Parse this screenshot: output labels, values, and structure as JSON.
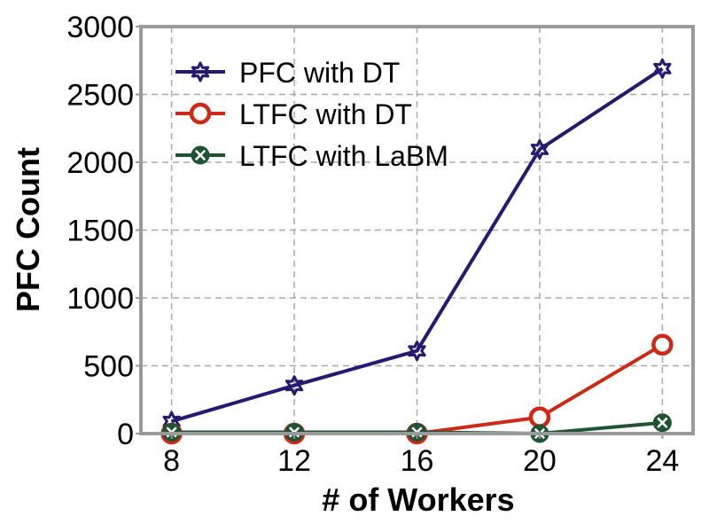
{
  "chart_data": {
    "type": "line",
    "x": [
      8,
      12,
      16,
      20,
      24
    ],
    "xticks": [
      "8",
      "12",
      "16",
      "20",
      "24"
    ],
    "xlim": [
      7,
      25
    ],
    "ylim": [
      0,
      3000
    ],
    "yticks": [
      "0",
      "500",
      "1000",
      "1500",
      "2000",
      "2500",
      "3000"
    ],
    "xlabel": "# of Workers",
    "ylabel": "PFC Count",
    "grid": true,
    "legend_position": "upper-left",
    "series": [
      {
        "name": "PFC with DT",
        "values": [
          90,
          355,
          610,
          2095,
          2690
        ],
        "color": "#241a6f",
        "marker": "star"
      },
      {
        "name": "LTFC with DT",
        "values": [
          0,
          0,
          0,
          120,
          655
        ],
        "color": "#cc2a16",
        "marker": "circle-open"
      },
      {
        "name": "LTFC with LaBM",
        "values": [
          10,
          10,
          10,
          0,
          80
        ],
        "color": "#1f5433",
        "marker": "x-circle"
      }
    ]
  }
}
